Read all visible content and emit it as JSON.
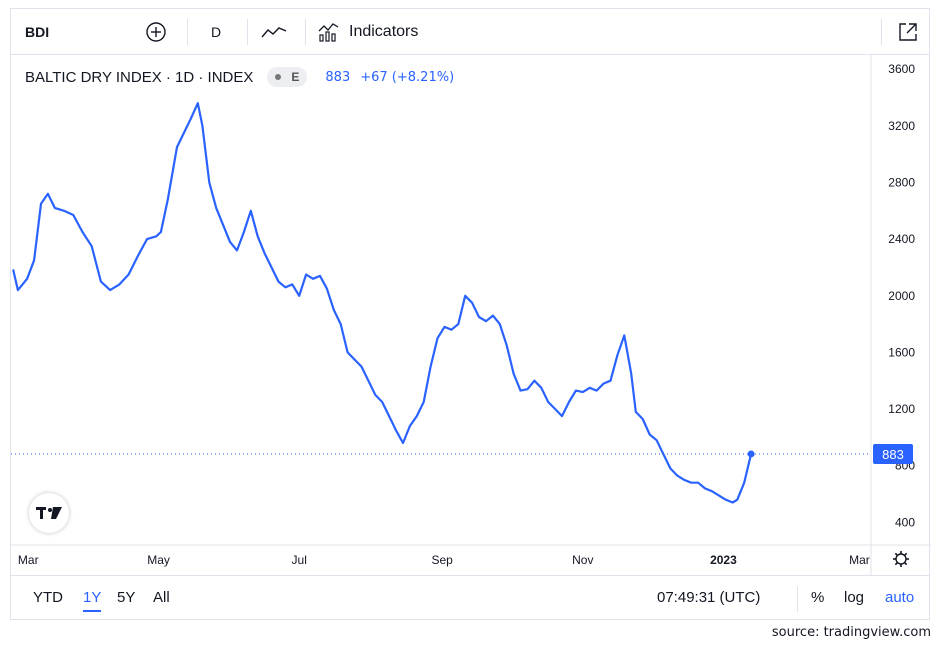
{
  "toolbar": {
    "symbol": "BDI",
    "interval": "D",
    "indicators_label": "Indicators",
    "icons": [
      "add-symbol-icon",
      "line-style-icon",
      "indicators-icon",
      "fullscreen-icon"
    ]
  },
  "legend": {
    "title": "BALTIC DRY INDEX · 1D · INDEX",
    "badge": "E",
    "price": "883",
    "change": "+67 (+8.21%)"
  },
  "price_label": "883",
  "bottom_bar": {
    "ranges": [
      "YTD",
      "1Y",
      "5Y",
      "All"
    ],
    "active_range": "1Y",
    "time": "07:49:31 (UTC)",
    "percent": "%",
    "log": "log",
    "auto": "auto"
  },
  "source": "source: tradingview.com",
  "colors": {
    "line": "#2962ff",
    "accent": "#2962ff",
    "grid": "#f0f3fa"
  },
  "chart_data": {
    "type": "line",
    "title": "BALTIC DRY INDEX",
    "xlabel": "",
    "ylabel": "",
    "ylim": [
      240,
      3700
    ],
    "y_ticks": [
      400,
      800,
      1200,
      1600,
      2000,
      2400,
      2800,
      3200,
      3600
    ],
    "x_ticks": [
      {
        "label": "Mar",
        "t": 0
      },
      {
        "label": "May",
        "t": 61
      },
      {
        "label": "Jul",
        "t": 122
      },
      {
        "label": "Sep",
        "t": 184
      },
      {
        "label": "Nov",
        "t": 245
      },
      {
        "label": "2023",
        "t": 306
      },
      {
        "label": "Mar",
        "t": 365
      }
    ],
    "x_range": [
      -3,
      370
    ],
    "current_value": 883,
    "series": [
      {
        "values": [
          [
            -2,
            2180
          ],
          [
            0,
            2040
          ],
          [
            4,
            2120
          ],
          [
            7,
            2250
          ],
          [
            10,
            2650
          ],
          [
            13,
            2720
          ],
          [
            16,
            2620
          ],
          [
            20,
            2600
          ],
          [
            24,
            2570
          ],
          [
            28,
            2450
          ],
          [
            32,
            2350
          ],
          [
            36,
            2100
          ],
          [
            40,
            2040
          ],
          [
            44,
            2080
          ],
          [
            48,
            2150
          ],
          [
            52,
            2280
          ],
          [
            56,
            2400
          ],
          [
            60,
            2420
          ],
          [
            62,
            2450
          ],
          [
            65,
            2680
          ],
          [
            69,
            3050
          ],
          [
            72,
            3150
          ],
          [
            75,
            3250
          ],
          [
            78,
            3360
          ],
          [
            80,
            3200
          ],
          [
            83,
            2800
          ],
          [
            86,
            2620
          ],
          [
            89,
            2500
          ],
          [
            92,
            2380
          ],
          [
            95,
            2320
          ],
          [
            98,
            2450
          ],
          [
            101,
            2600
          ],
          [
            104,
            2420
          ],
          [
            107,
            2300
          ],
          [
            110,
            2200
          ],
          [
            113,
            2100
          ],
          [
            116,
            2060
          ],
          [
            119,
            2080
          ],
          [
            122,
            2000
          ],
          [
            125,
            2150
          ],
          [
            128,
            2120
          ],
          [
            131,
            2140
          ],
          [
            134,
            2050
          ],
          [
            137,
            1900
          ],
          [
            140,
            1800
          ],
          [
            143,
            1600
          ],
          [
            146,
            1550
          ],
          [
            149,
            1500
          ],
          [
            152,
            1400
          ],
          [
            155,
            1300
          ],
          [
            158,
            1250
          ],
          [
            161,
            1150
          ],
          [
            164,
            1050
          ],
          [
            167,
            960
          ],
          [
            170,
            1080
          ],
          [
            173,
            1150
          ],
          [
            176,
            1250
          ],
          [
            179,
            1500
          ],
          [
            182,
            1700
          ],
          [
            185,
            1780
          ],
          [
            188,
            1760
          ],
          [
            191,
            1800
          ],
          [
            194,
            2000
          ],
          [
            197,
            1950
          ],
          [
            200,
            1850
          ],
          [
            203,
            1820
          ],
          [
            206,
            1860
          ],
          [
            209,
            1800
          ],
          [
            212,
            1650
          ],
          [
            215,
            1450
          ],
          [
            218,
            1330
          ],
          [
            221,
            1340
          ],
          [
            224,
            1400
          ],
          [
            227,
            1350
          ],
          [
            230,
            1250
          ],
          [
            233,
            1200
          ],
          [
            236,
            1150
          ],
          [
            239,
            1250
          ],
          [
            242,
            1330
          ],
          [
            245,
            1320
          ],
          [
            248,
            1350
          ],
          [
            251,
            1330
          ],
          [
            254,
            1380
          ],
          [
            257,
            1400
          ],
          [
            260,
            1580
          ],
          [
            263,
            1720
          ],
          [
            266,
            1450
          ],
          [
            268,
            1180
          ],
          [
            271,
            1130
          ],
          [
            274,
            1020
          ],
          [
            277,
            980
          ],
          [
            280,
            880
          ],
          [
            283,
            780
          ],
          [
            286,
            730
          ],
          [
            289,
            700
          ],
          [
            292,
            680
          ],
          [
            295,
            680
          ],
          [
            298,
            640
          ],
          [
            301,
            620
          ],
          [
            304,
            590
          ],
          [
            307,
            560
          ],
          [
            310,
            540
          ],
          [
            312,
            560
          ],
          [
            315,
            680
          ],
          [
            318,
            883
          ]
        ]
      }
    ]
  }
}
